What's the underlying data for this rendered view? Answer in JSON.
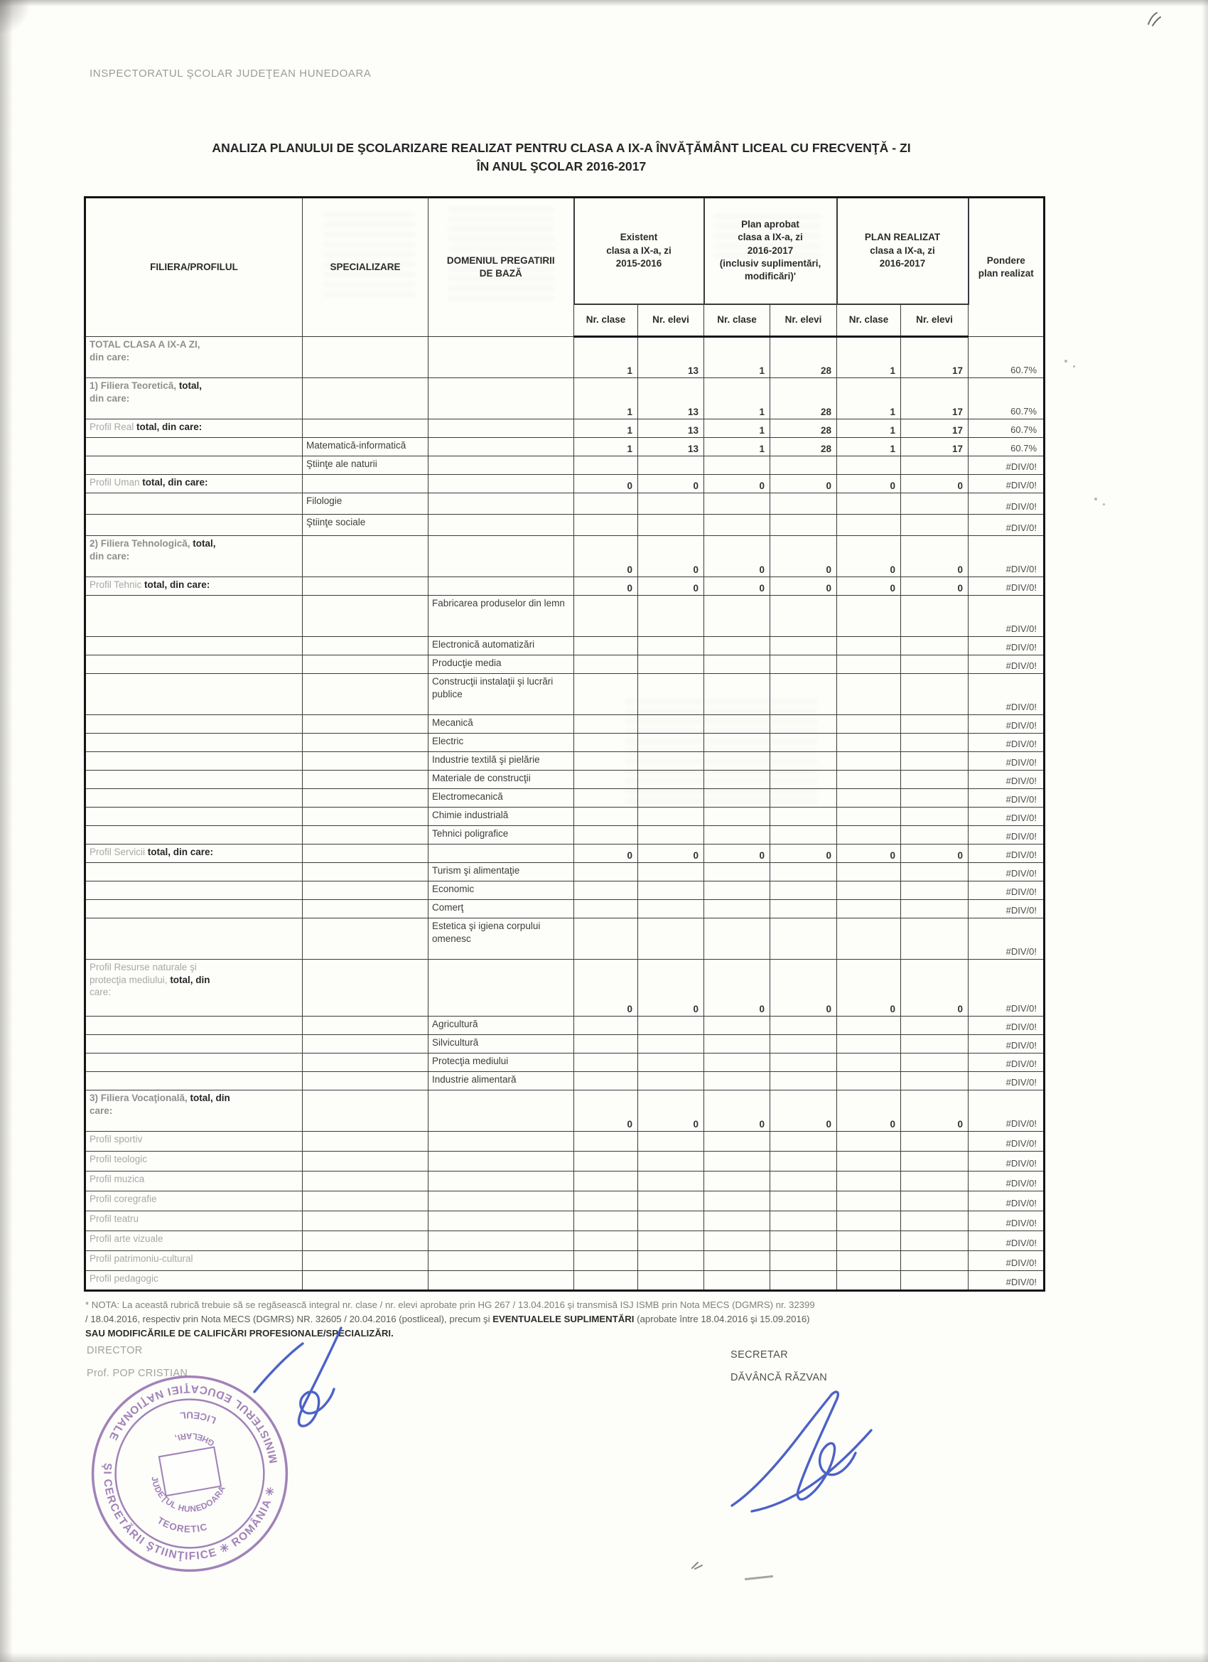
{
  "page": {
    "org_header": "INSPECTORATUL ŞCOLAR JUDEŢEAN HUNEDOARA",
    "title_line1": "ANALIZA PLANULUI DE ŞCOLARIZARE REALIZAT PENTRU CLASA A IX-A ÎNVĂŢĂMÂNT LICEAL CU FRECVENŢĂ - ZI",
    "title_line2": "ÎN ANUL ŞCOLAR 2016-2017"
  },
  "table": {
    "headers": {
      "filiera": "FILIERA/PROFILUL",
      "specializare": "SPECIALIZARE",
      "domeniul": "DOMENIUL PREGATIRII\nDE BAZĂ",
      "existent": "Existent\nclasa a IX-a, zi\n2015-2016",
      "plan_aprobat": "Plan aprobat\nclasa a IX-a, zi\n2016-2017\n(inclusiv suplimentări,\nmodificări)'",
      "plan_realizat": "PLAN REALIZAT\nclasa a IX-a, zi\n2016-2017",
      "pondere": "Pondere\nplan realizat",
      "nr_clase": "Nr. clase",
      "nr_elevi": "Nr. elevi"
    },
    "rows": [
      {
        "c": 1,
        "h": "t",
        "hb": false,
        "lines": [
          [
            [
              "D",
              "TOTAL CLASA A IX-A ZI,"
            ]
          ],
          [
            [
              "D",
              "din care:"
            ]
          ]
        ],
        "v": [
          "1",
          "13",
          "1",
          "28",
          "1",
          "17"
        ],
        "p": "60.7%"
      },
      {
        "c": 1,
        "h": "t",
        "hb": true,
        "lines": [
          [
            [
              "D",
              "1) Filiera Teoretică, "
            ],
            [
              "b",
              "total,"
            ]
          ],
          [
            [
              "D",
              "din care:"
            ]
          ]
        ],
        "v": [
          "1",
          "13",
          "1",
          "28",
          "1",
          "17"
        ],
        "p": "60.7%"
      },
      {
        "c": 1,
        "h": "s",
        "hb": true,
        "lines": [
          [
            [
              "d",
              "Profil Real "
            ],
            [
              "b",
              "total, din care:"
            ]
          ]
        ],
        "v": [
          "1",
          "13",
          "1",
          "28",
          "1",
          "17"
        ],
        "p": "60.7%"
      },
      {
        "c": 2,
        "h": "s",
        "hb": false,
        "lines": [
          [
            [
              "n",
              "Matematică-informatică"
            ]
          ]
        ],
        "v": [
          "1",
          "13",
          "1",
          "28",
          "1",
          "17"
        ],
        "p": "60.7%"
      },
      {
        "c": 2,
        "h": "s",
        "hb": false,
        "lines": [
          [
            [
              "n",
              "Ştiinţe ale naturii"
            ]
          ]
        ],
        "v": [
          "",
          "",
          "",
          "",
          "",
          ""
        ],
        "p": "#DIV/0!"
      },
      {
        "c": 1,
        "h": "s",
        "hb": true,
        "lines": [
          [
            [
              "d",
              "Profil Uman "
            ],
            [
              "b",
              "total, din care:"
            ]
          ]
        ],
        "v": [
          "0",
          "0",
          "0",
          "0",
          "0",
          "0"
        ],
        "p": "#DIV/0!"
      },
      {
        "c": 2,
        "h": "m",
        "hb": false,
        "lines": [
          [
            [
              "n",
              "Filologie"
            ]
          ]
        ],
        "v": [
          "",
          "",
          "",
          "",
          "",
          ""
        ],
        "p": "#DIV/0!"
      },
      {
        "c": 2,
        "h": "m",
        "hb": false,
        "lines": [
          [
            [
              "n",
              "Ştiinţe sociale"
            ]
          ]
        ],
        "v": [
          "",
          "",
          "",
          "",
          "",
          ""
        ],
        "p": "#DIV/0!"
      },
      {
        "c": 1,
        "h": "t",
        "hb": true,
        "lines": [
          [
            [
              "D",
              "2) Filiera Tehnologică, "
            ],
            [
              "b",
              "total,"
            ]
          ],
          [
            [
              "D",
              "din care:"
            ]
          ]
        ],
        "v": [
          "0",
          "0",
          "0",
          "0",
          "0",
          "0"
        ],
        "p": "#DIV/0!"
      },
      {
        "c": 1,
        "h": "s",
        "hb": true,
        "lines": [
          [
            [
              "d",
              "Profil Tehnic "
            ],
            [
              "b",
              "total, din care:"
            ]
          ]
        ],
        "v": [
          "0",
          "0",
          "0",
          "0",
          "0",
          "0"
        ],
        "p": "#DIV/0!"
      },
      {
        "c": 3,
        "h": "t",
        "hb": false,
        "lines": [
          [
            [
              "n",
              "Fabricarea produselor din lemn"
            ]
          ]
        ],
        "v": [
          "",
          "",
          "",
          "",
          "",
          ""
        ],
        "p": "#DIV/0!"
      },
      {
        "c": 3,
        "h": "s",
        "hb": false,
        "lines": [
          [
            [
              "n",
              "Electronică automatizări"
            ]
          ]
        ],
        "v": [
          "",
          "",
          "",
          "",
          "",
          ""
        ],
        "p": "#DIV/0!"
      },
      {
        "c": 3,
        "h": "s",
        "hb": false,
        "lines": [
          [
            [
              "n",
              "Producţie media"
            ]
          ]
        ],
        "v": [
          "",
          "",
          "",
          "",
          "",
          ""
        ],
        "p": "#DIV/0!"
      },
      {
        "c": 3,
        "h": "t",
        "hb": false,
        "lines": [
          [
            [
              "n",
              "Construcţii instalaţii şi lucrări publice"
            ]
          ]
        ],
        "v": [
          "",
          "",
          "",
          "",
          "",
          ""
        ],
        "p": "#DIV/0!"
      },
      {
        "c": 3,
        "h": "s",
        "hb": false,
        "lines": [
          [
            [
              "n",
              "Mecanică"
            ]
          ]
        ],
        "v": [
          "",
          "",
          "",
          "",
          "",
          ""
        ],
        "p": "#DIV/0!"
      },
      {
        "c": 3,
        "h": "s",
        "hb": false,
        "lines": [
          [
            [
              "n",
              "Electric"
            ]
          ]
        ],
        "v": [
          "",
          "",
          "",
          "",
          "",
          ""
        ],
        "p": "#DIV/0!"
      },
      {
        "c": 3,
        "h": "s",
        "hb": false,
        "lines": [
          [
            [
              "n",
              "Industrie textilă şi pielărie"
            ]
          ]
        ],
        "v": [
          "",
          "",
          "",
          "",
          "",
          ""
        ],
        "p": "#DIV/0!"
      },
      {
        "c": 3,
        "h": "s",
        "hb": false,
        "lines": [
          [
            [
              "n",
              "Materiale de construcţii"
            ]
          ]
        ],
        "v": [
          "",
          "",
          "",
          "",
          "",
          ""
        ],
        "p": "#DIV/0!"
      },
      {
        "c": 3,
        "h": "s",
        "hb": false,
        "lines": [
          [
            [
              "n",
              "Electromecanică"
            ]
          ]
        ],
        "v": [
          "",
          "",
          "",
          "",
          "",
          ""
        ],
        "p": "#DIV/0!"
      },
      {
        "c": 3,
        "h": "s",
        "hb": false,
        "lines": [
          [
            [
              "n",
              "Chimie industrială"
            ]
          ]
        ],
        "v": [
          "",
          "",
          "",
          "",
          "",
          ""
        ],
        "p": "#DIV/0!"
      },
      {
        "c": 3,
        "h": "s",
        "hb": false,
        "lines": [
          [
            [
              "n",
              "Tehnici poligrafice"
            ]
          ]
        ],
        "v": [
          "",
          "",
          "",
          "",
          "",
          ""
        ],
        "p": "#DIV/0!"
      },
      {
        "c": 1,
        "h": "s",
        "hb": true,
        "lines": [
          [
            [
              "d",
              "Profil Servicii "
            ],
            [
              "b",
              "total, din care:"
            ]
          ]
        ],
        "v": [
          "0",
          "0",
          "0",
          "0",
          "0",
          "0"
        ],
        "p": "#DIV/0!"
      },
      {
        "c": 3,
        "h": "s",
        "hb": false,
        "lines": [
          [
            [
              "n",
              "Turism şi alimentaţie"
            ]
          ]
        ],
        "v": [
          "",
          "",
          "",
          "",
          "",
          ""
        ],
        "p": "#DIV/0!"
      },
      {
        "c": 3,
        "h": "s",
        "hb": false,
        "lines": [
          [
            [
              "n",
              "Economic"
            ]
          ]
        ],
        "v": [
          "",
          "",
          "",
          "",
          "",
          ""
        ],
        "p": "#DIV/0!"
      },
      {
        "c": 3,
        "h": "s",
        "hb": false,
        "lines": [
          [
            [
              "n",
              "Comerţ"
            ]
          ]
        ],
        "v": [
          "",
          "",
          "",
          "",
          "",
          ""
        ],
        "p": "#DIV/0!"
      },
      {
        "c": 3,
        "h": "t",
        "hb": false,
        "lines": [
          [
            [
              "n",
              "Estetica şi igiena corpului omenesc"
            ]
          ]
        ],
        "v": [
          "",
          "",
          "",
          "",
          "",
          ""
        ],
        "p": "#DIV/0!"
      },
      {
        "c": 1,
        "h": "x",
        "hb": true,
        "lines": [
          [
            [
              "d",
              "Profil Resurse naturale şi"
            ]
          ],
          [
            [
              "d",
              "protecţia mediului, "
            ],
            [
              "b",
              "total, din"
            ]
          ],
          [
            [
              "d",
              "care:"
            ]
          ]
        ],
        "v": [
          "0",
          "0",
          "0",
          "0",
          "0",
          "0"
        ],
        "p": "#DIV/0!"
      },
      {
        "c": 3,
        "h": "s",
        "hb": false,
        "lines": [
          [
            [
              "n",
              "Agricultură"
            ]
          ]
        ],
        "v": [
          "",
          "",
          "",
          "",
          "",
          ""
        ],
        "p": "#DIV/0!"
      },
      {
        "c": 3,
        "h": "s",
        "hb": false,
        "lines": [
          [
            [
              "n",
              "Silvicultură"
            ]
          ]
        ],
        "v": [
          "",
          "",
          "",
          "",
          "",
          ""
        ],
        "p": "#DIV/0!"
      },
      {
        "c": 3,
        "h": "s",
        "hb": false,
        "lines": [
          [
            [
              "n",
              "Protecţia mediului"
            ]
          ]
        ],
        "v": [
          "",
          "",
          "",
          "",
          "",
          ""
        ],
        "p": "#DIV/0!"
      },
      {
        "c": 3,
        "h": "s",
        "hb": false,
        "lines": [
          [
            [
              "n",
              "Industrie alimentară"
            ]
          ]
        ],
        "v": [
          "",
          "",
          "",
          "",
          "",
          ""
        ],
        "p": "#DIV/0!"
      },
      {
        "c": 1,
        "h": "t",
        "hb": true,
        "lines": [
          [
            [
              "D",
              "3) Filiera Vocaţională, "
            ],
            [
              "b",
              "total, din"
            ]
          ],
          [
            [
              "D",
              "care:"
            ]
          ]
        ],
        "v": [
          "0",
          "0",
          "0",
          "0",
          "0",
          "0"
        ],
        "p": "#DIV/0!"
      },
      {
        "c": 1,
        "h": "v",
        "hb": true,
        "lines": [
          [
            [
              "d",
              "Profil sportiv"
            ]
          ]
        ],
        "v": [
          "",
          "",
          "",
          "",
          "",
          ""
        ],
        "p": "#DIV/0!"
      },
      {
        "c": 1,
        "h": "v",
        "hb": true,
        "lines": [
          [
            [
              "d",
              "Profil teologic"
            ]
          ]
        ],
        "v": [
          "",
          "",
          "",
          "",
          "",
          ""
        ],
        "p": "#DIV/0!"
      },
      {
        "c": 1,
        "h": "v",
        "hb": true,
        "lines": [
          [
            [
              "d",
              "Profil muzica"
            ]
          ]
        ],
        "v": [
          "",
          "",
          "",
          "",
          "",
          ""
        ],
        "p": "#DIV/0!"
      },
      {
        "c": 1,
        "h": "v",
        "hb": true,
        "lines": [
          [
            [
              "d",
              "Profil coregrafie"
            ]
          ]
        ],
        "v": [
          "",
          "",
          "",
          "",
          "",
          ""
        ],
        "p": "#DIV/0!"
      },
      {
        "c": 1,
        "h": "v",
        "hb": true,
        "lines": [
          [
            [
              "d",
              "Profil teatru"
            ]
          ]
        ],
        "v": [
          "",
          "",
          "",
          "",
          "",
          ""
        ],
        "p": "#DIV/0!"
      },
      {
        "c": 1,
        "h": "v",
        "hb": true,
        "lines": [
          [
            [
              "d",
              "Profil arte vizuale"
            ]
          ]
        ],
        "v": [
          "",
          "",
          "",
          "",
          "",
          ""
        ],
        "p": "#DIV/0!"
      },
      {
        "c": 1,
        "h": "v",
        "hb": true,
        "lines": [
          [
            [
              "d",
              "Profil patrimoniu-cultural"
            ]
          ]
        ],
        "v": [
          "",
          "",
          "",
          "",
          "",
          ""
        ],
        "p": "#DIV/0!"
      },
      {
        "c": 1,
        "h": "v",
        "hb": true,
        "lines": [
          [
            [
              "d",
              "Profil pedagogic"
            ]
          ]
        ],
        "v": [
          "",
          "",
          "",
          "",
          "",
          ""
        ],
        "p": "#DIV/0!"
      }
    ]
  },
  "footnote": {
    "line1": "* NOTA: La această rubrică trebuie să se regăsească integral nr. clase / nr. elevi aprobate prin HG 267 / 13.04.2016 şi transmisă ISJ ISMB prin Nota MECS (DGMRS) nr. 32399",
    "line2_pre": "/ 18.04.2016, respectiv prin Nota MECS (DGMRS) NR. 32605 / 20.04.2016 (postliceal), precum şi ",
    "line2_bold": "EVENTUALELE SUPLIMENTĂRI",
    "line2_post": " (aprobate între 18.04.2016 şi 15.09.2016)",
    "line3": "SAU MODIFICĂRILE DE CALIFICĂRI PROFESIONALE/SPECIALIZĂRI."
  },
  "signatures": {
    "director_label": "DIRECTOR",
    "director_name": "Prof. POP CRISTIAN",
    "secretary_label": "SECRETAR",
    "secretary_name": "DĂVÂNCĂ RĂZVAN"
  },
  "stamp": {
    "outer_top": "MINISTERUL EDUCAŢIEI NAŢIONALE",
    "outer_bottom": "ŞI CERCETĂRII ŞTIINŢIFICE ✳ ROMÂNIA ✳",
    "inner_a_top": "LICEUL",
    "inner_a_bottom": "TEORETIC",
    "inner_b_top": "GHELARI,",
    "inner_b_bottom": "JUDEŢUL HUNEDOARA",
    "color": "#8d68ab"
  },
  "colors": {
    "paper": "#fdfdfa",
    "ink": "#2d2d2d",
    "faded_ink": "#a8a8a8",
    "stamp_purple": "#8d68ab",
    "signature_blue": "#3d55c2"
  }
}
